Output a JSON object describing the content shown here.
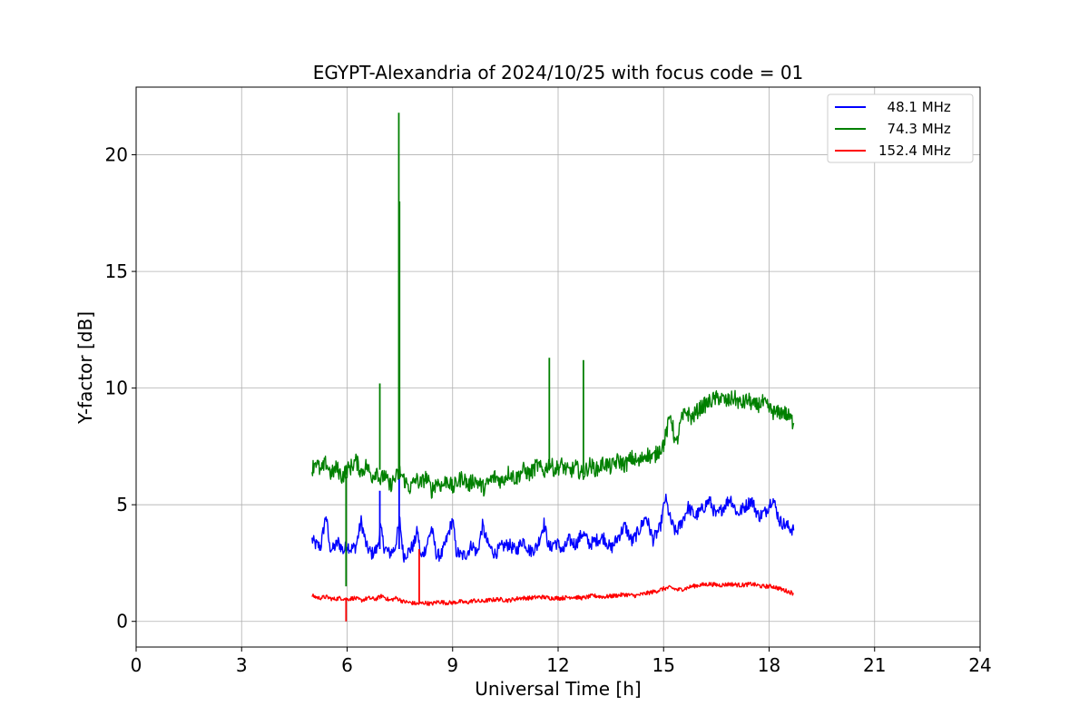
{
  "chart_data": {
    "type": "line",
    "title": "EGYPT-Alexandria of 2024/10/25 with focus code = 01",
    "xlabel": "Universal Time [h]",
    "ylabel": "Y-factor [dB]",
    "xlim": [
      0,
      24
    ],
    "ylim": [
      -1.1,
      22.9
    ],
    "xticks": [
      0,
      3,
      6,
      9,
      12,
      15,
      18,
      21,
      24
    ],
    "yticks": [
      0,
      5,
      10,
      15,
      20
    ],
    "grid": true,
    "legend_position": "top-right",
    "series": [
      {
        "name": "48.1 MHz",
        "legend_label": "  48.1 MHz",
        "color": "#0000ff",
        "x": [
          5.0,
          5.1,
          5.25,
          5.4,
          5.5,
          5.6,
          5.75,
          5.9,
          6.0,
          6.1,
          6.25,
          6.4,
          6.55,
          6.7,
          6.85,
          6.95,
          7.05,
          7.2,
          7.35,
          7.5,
          7.6,
          7.75,
          7.9,
          8.0,
          8.1,
          8.25,
          8.4,
          8.55,
          8.7,
          8.85,
          9.0,
          9.1,
          9.25,
          9.4,
          9.55,
          9.7,
          9.85,
          10.0,
          10.2,
          10.4,
          10.6,
          10.8,
          11.0,
          11.2,
          11.4,
          11.6,
          11.75,
          11.9,
          12.0,
          12.15,
          12.3,
          12.5,
          12.7,
          12.9,
          13.1,
          13.3,
          13.5,
          13.7,
          13.9,
          14.1,
          14.3,
          14.5,
          14.7,
          14.9,
          15.05,
          15.2,
          15.35,
          15.5,
          15.7,
          15.9,
          16.1,
          16.3,
          16.5,
          16.7,
          16.9,
          17.1,
          17.3,
          17.5,
          17.7,
          17.9,
          18.1,
          18.3,
          18.5,
          18.7
        ],
        "y": [
          3.5,
          3.3,
          3.2,
          4.6,
          3.2,
          3.1,
          3.4,
          3.0,
          3.3,
          3.1,
          3.2,
          4.3,
          3.2,
          2.9,
          3.1,
          4.0,
          3.2,
          2.9,
          3.1,
          4.3,
          2.8,
          3.0,
          3.3,
          3.9,
          2.7,
          3.2,
          4.0,
          2.8,
          2.9,
          3.6,
          4.4,
          3.0,
          2.8,
          2.9,
          3.3,
          2.9,
          4.1,
          3.3,
          2.9,
          3.2,
          3.3,
          3.0,
          3.5,
          3.0,
          3.2,
          4.2,
          3.1,
          3.4,
          3.3,
          3.0,
          3.5,
          3.3,
          3.8,
          3.3,
          3.5,
          3.6,
          3.1,
          3.6,
          4.1,
          3.4,
          3.9,
          4.5,
          3.5,
          4.0,
          5.3,
          4.3,
          3.8,
          4.2,
          4.9,
          4.5,
          4.8,
          5.2,
          4.5,
          4.9,
          5.3,
          4.6,
          4.9,
          5.2,
          4.5,
          4.7,
          5.3,
          4.3,
          4.1,
          3.9
        ]
      },
      {
        "name": "74.3 MHz",
        "legend_label": "  74.3 MHz",
        "color": "#008000",
        "x": [
          5.0,
          5.1,
          5.25,
          5.4,
          5.55,
          5.7,
          5.85,
          6.0,
          6.1,
          6.25,
          6.4,
          6.55,
          6.7,
          6.85,
          6.95,
          7.05,
          7.2,
          7.35,
          7.5,
          7.65,
          7.8,
          7.95,
          8.1,
          8.25,
          8.4,
          8.55,
          8.7,
          8.85,
          9.0,
          9.15,
          9.3,
          9.45,
          9.6,
          9.75,
          9.9,
          10.05,
          10.2,
          10.4,
          10.6,
          10.8,
          11.0,
          11.2,
          11.4,
          11.6,
          11.75,
          11.9,
          12.1,
          12.3,
          12.5,
          12.7,
          12.9,
          13.1,
          13.3,
          13.5,
          13.7,
          13.9,
          14.1,
          14.3,
          14.5,
          14.7,
          14.85,
          15.0,
          15.1,
          15.2,
          15.35,
          15.5,
          15.65,
          15.8,
          16.0,
          16.2,
          16.4,
          16.6,
          16.8,
          17.0,
          17.2,
          17.4,
          17.6,
          17.8,
          18.0,
          18.2,
          18.4,
          18.6,
          18.7
        ],
        "y": [
          6.5,
          6.9,
          6.4,
          6.8,
          6.3,
          6.6,
          6.2,
          6.5,
          6.6,
          6.9,
          6.4,
          6.7,
          6.2,
          6.5,
          6.0,
          6.3,
          5.8,
          6.1,
          6.4,
          6.0,
          5.7,
          6.1,
          5.9,
          6.2,
          5.6,
          6.0,
          5.8,
          6.1,
          5.7,
          6.0,
          6.2,
          5.8,
          6.1,
          5.9,
          5.7,
          6.0,
          6.2,
          6.0,
          6.4,
          6.1,
          6.5,
          6.3,
          6.7,
          6.4,
          6.8,
          6.5,
          6.7,
          6.4,
          6.6,
          6.3,
          6.7,
          6.5,
          6.8,
          6.6,
          6.9,
          6.7,
          7.0,
          6.8,
          7.2,
          7.0,
          7.3,
          7.6,
          8.2,
          8.9,
          7.5,
          8.6,
          9.0,
          8.7,
          9.1,
          9.3,
          9.5,
          9.6,
          9.4,
          9.6,
          9.3,
          9.5,
          9.2,
          9.4,
          9.1,
          8.9,
          9.0,
          8.7,
          8.5
        ]
      },
      {
        "name": "152.4 MHz",
        "legend_label": "152.4 MHz",
        "color": "#ff0000",
        "x": [
          5.0,
          5.2,
          5.4,
          5.6,
          5.8,
          6.0,
          6.2,
          6.4,
          6.6,
          6.8,
          7.0,
          7.2,
          7.4,
          7.6,
          7.8,
          8.0,
          8.2,
          8.4,
          8.6,
          8.8,
          9.0,
          9.2,
          9.4,
          9.6,
          9.8,
          10.0,
          10.3,
          10.6,
          10.9,
          11.2,
          11.5,
          11.8,
          12.1,
          12.4,
          12.7,
          13.0,
          13.3,
          13.6,
          13.9,
          14.2,
          14.5,
          14.8,
          15.0,
          15.2,
          15.4,
          15.6,
          15.8,
          16.0,
          16.3,
          16.6,
          16.9,
          17.2,
          17.5,
          17.8,
          18.1,
          18.4,
          18.7
        ],
        "y": [
          1.1,
          1.0,
          1.05,
          0.95,
          1.0,
          0.95,
          1.0,
          0.9,
          1.0,
          0.95,
          1.1,
          0.9,
          1.0,
          0.85,
          0.8,
          0.75,
          0.8,
          0.75,
          0.85,
          0.8,
          0.8,
          0.85,
          0.8,
          0.9,
          0.85,
          0.9,
          0.95,
          0.9,
          1.0,
          1.0,
          1.05,
          1.0,
          1.0,
          1.05,
          1.0,
          1.1,
          1.05,
          1.1,
          1.15,
          1.1,
          1.2,
          1.3,
          1.4,
          1.45,
          1.35,
          1.4,
          1.5,
          1.55,
          1.6,
          1.55,
          1.6,
          1.55,
          1.6,
          1.5,
          1.5,
          1.35,
          1.2
        ]
      }
    ],
    "spikes": [
      {
        "series": "74.3 MHz",
        "x": 6.93,
        "y": 10.2
      },
      {
        "series": "74.3 MHz",
        "x": 7.47,
        "y": 21.8
      },
      {
        "series": "74.3 MHz",
        "x": 7.49,
        "y": 18.0
      },
      {
        "series": "74.3 MHz",
        "x": 11.75,
        "y": 11.3
      },
      {
        "series": "74.3 MHz",
        "x": 12.72,
        "y": 11.2
      },
      {
        "series": "74.3 MHz",
        "x": 5.97,
        "y": 1.5
      },
      {
        "series": "48.1 MHz",
        "x": 6.93,
        "y": 5.6
      },
      {
        "series": "48.1 MHz",
        "x": 7.48,
        "y": 6.2
      },
      {
        "series": "152.4 MHz",
        "x": 5.97,
        "y": 0.0
      },
      {
        "series": "152.4 MHz",
        "x": 8.05,
        "y": 3.1
      }
    ]
  }
}
